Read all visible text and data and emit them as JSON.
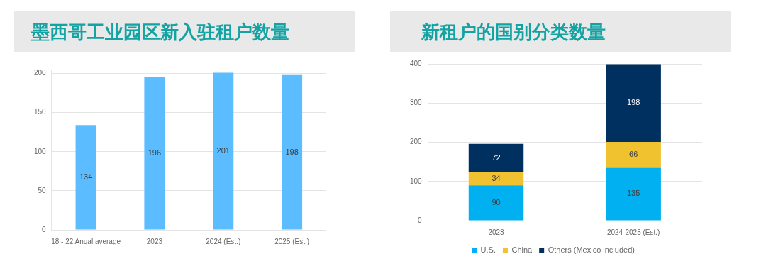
{
  "chart_data": [
    {
      "type": "bar",
      "title": "墨西哥工业园区新入驻租户数量",
      "categories": [
        "18 - 22 Anual average",
        "2023",
        "2024 (Est.)",
        "2025 (Est.)"
      ],
      "values": [
        134,
        196,
        201,
        198
      ],
      "color": "#5bbcff",
      "ylim": [
        0,
        205
      ],
      "yticks": [
        0,
        50,
        100,
        150,
        200
      ],
      "grid": "y",
      "data_labels": true
    },
    {
      "type": "bar",
      "title": "新租户的国别分类数量",
      "categories": [
        "2023",
        "2024-2025 (Est.)"
      ],
      "stacked": true,
      "ylim": [
        0,
        400
      ],
      "yticks": [
        0,
        100,
        200,
        300,
        400
      ],
      "grid": "y",
      "data_labels": true,
      "legend": "bottom",
      "series": [
        {
          "name": "U.S.",
          "color": "#00b0f0",
          "values": [
            90,
            135
          ]
        },
        {
          "name": "China",
          "color": "#f0c230",
          "values": [
            34,
            66
          ]
        },
        {
          "name": "Others (Mexico included)",
          "color": "#003060",
          "values": [
            72,
            198
          ]
        }
      ]
    }
  ]
}
